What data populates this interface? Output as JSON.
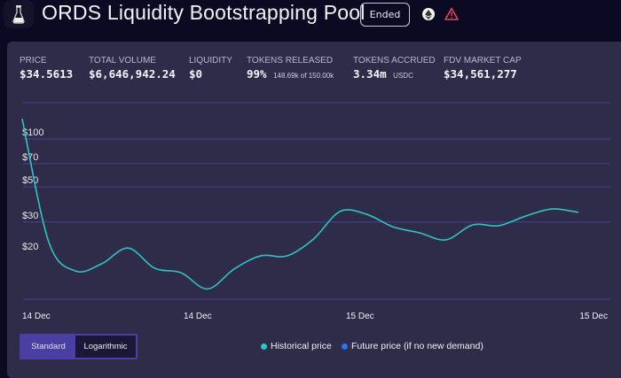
{
  "header": {
    "title": "ORDS Liquidity Bootstrapping Pool",
    "status_badge": "Ended",
    "icons": [
      "flask-icon",
      "ethereum-icon",
      "warning-icon"
    ],
    "warning_color": "#e8445a"
  },
  "stats": [
    {
      "label": "PRICE",
      "value": "$34.5613"
    },
    {
      "label": "TOTAL VOLUME",
      "value": "$6,646,942.24"
    },
    {
      "label": "LIQUIDITY",
      "value": "$0"
    },
    {
      "label": "TOKENS RELEASED",
      "value": "99%",
      "sub": "148.69k of 150.00k"
    },
    {
      "label": "TOKENS ACCRUED",
      "value": "3.34m",
      "sub": "USDC"
    },
    {
      "label": "FDV MARKET CAP",
      "value": "$34,561,277"
    }
  ],
  "chart_data": {
    "type": "line",
    "y_scale": "log",
    "ylim": [
      10,
      160
    ],
    "y_ticks": [
      {
        "value": 100,
        "label": "$100"
      },
      {
        "value": 70,
        "label": "$70"
      },
      {
        "value": 50,
        "label": "$50"
      },
      {
        "value": 30,
        "label": "$30"
      },
      {
        "value": 20,
        "label": "$20"
      }
    ],
    "x_tick_labels": [
      "14 Dec",
      "14 Dec",
      "15 Dec",
      "15 Dec"
    ],
    "grid": true,
    "line_color": "#2ec4c4",
    "series": [
      {
        "name": "Historical price",
        "values": [
          134,
          22.6,
          14.8,
          16.4,
          20.6,
          15.4,
          14.4,
          11.4,
          15.2,
          18.4,
          18.4,
          23.5,
          35,
          33.6,
          28,
          25.7,
          23.2,
          28.8,
          28.5,
          32.7,
          36.3,
          34.56
        ]
      }
    ],
    "legend": [
      {
        "label": "Historical price",
        "color": "#2ec4c4"
      },
      {
        "label": "Future price (if no new demand)",
        "color": "#2f6ff0"
      }
    ],
    "legend_placement": "bottom-center"
  },
  "scale_toggle": {
    "options": [
      "Standard",
      "Logarithmic"
    ],
    "selected": "Logarithmic"
  }
}
